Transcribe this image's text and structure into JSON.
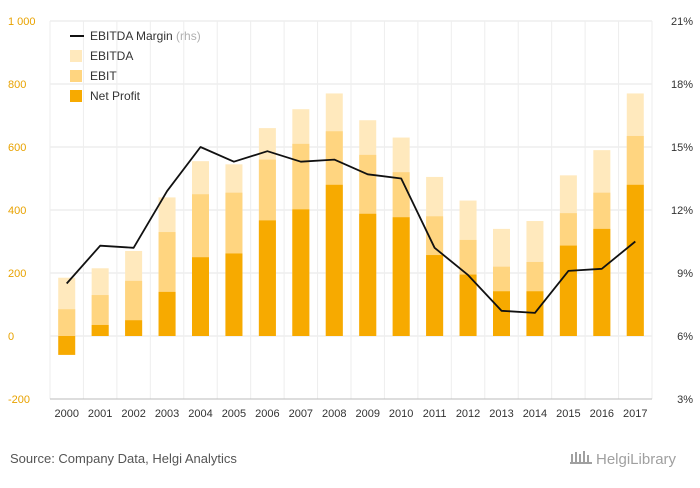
{
  "chart_data": {
    "type": "bar",
    "stacked": "overlay",
    "categories": [
      "2000",
      "2001",
      "2002",
      "2003",
      "2004",
      "2005",
      "2006",
      "2007",
      "2008",
      "2009",
      "2010",
      "2011",
      "2012",
      "2013",
      "2014",
      "2015",
      "2016",
      "2017"
    ],
    "series": [
      {
        "name": "EBITDA",
        "type": "bar",
        "axis": "left",
        "color": "#ffe9bd",
        "values": [
          185,
          215,
          270,
          440,
          555,
          545,
          660,
          720,
          770,
          685,
          630,
          505,
          430,
          340,
          365,
          510,
          590,
          770
        ]
      },
      {
        "name": "EBIT",
        "type": "bar",
        "axis": "left",
        "color": "#ffd580",
        "values": [
          85,
          130,
          175,
          330,
          450,
          455,
          560,
          610,
          650,
          575,
          520,
          380,
          305,
          220,
          235,
          390,
          455,
          635
        ]
      },
      {
        "name": "Net Profit",
        "type": "bar",
        "axis": "left",
        "color": "#f7aa00",
        "values": [
          -60,
          35,
          50,
          140,
          250,
          262,
          367,
          402,
          480,
          388,
          377,
          257,
          195,
          142,
          142,
          287,
          340,
          480
        ]
      },
      {
        "name": "EBITDA Margin",
        "name_suffix": "(rhs)",
        "type": "line",
        "axis": "right",
        "color": "#111111",
        "values": [
          8.5,
          10.3,
          10.2,
          12.9,
          15.0,
          14.3,
          14.8,
          14.3,
          14.4,
          13.7,
          13.5,
          10.2,
          8.9,
          7.2,
          7.1,
          9.1,
          9.2,
          10.5
        ]
      }
    ],
    "left_axis": {
      "ylim": [
        -200,
        1000
      ],
      "ticks": [
        -200,
        0,
        200,
        400,
        600,
        800,
        1000
      ],
      "tick_labels": [
        "-200",
        "0",
        "200",
        "400",
        "600",
        "800",
        "1 000"
      ]
    },
    "right_axis": {
      "ylim": [
        3,
        21
      ],
      "ticks": [
        3,
        6,
        9,
        12,
        15,
        18,
        21
      ],
      "tick_labels": [
        "3%",
        "6%",
        "9%",
        "12%",
        "15%",
        "18%",
        "21%"
      ]
    },
    "grid": true,
    "legend_position": "top-left",
    "source": "Source: Company Data, Helgi Analytics",
    "logo": "HelgiLibrary"
  }
}
